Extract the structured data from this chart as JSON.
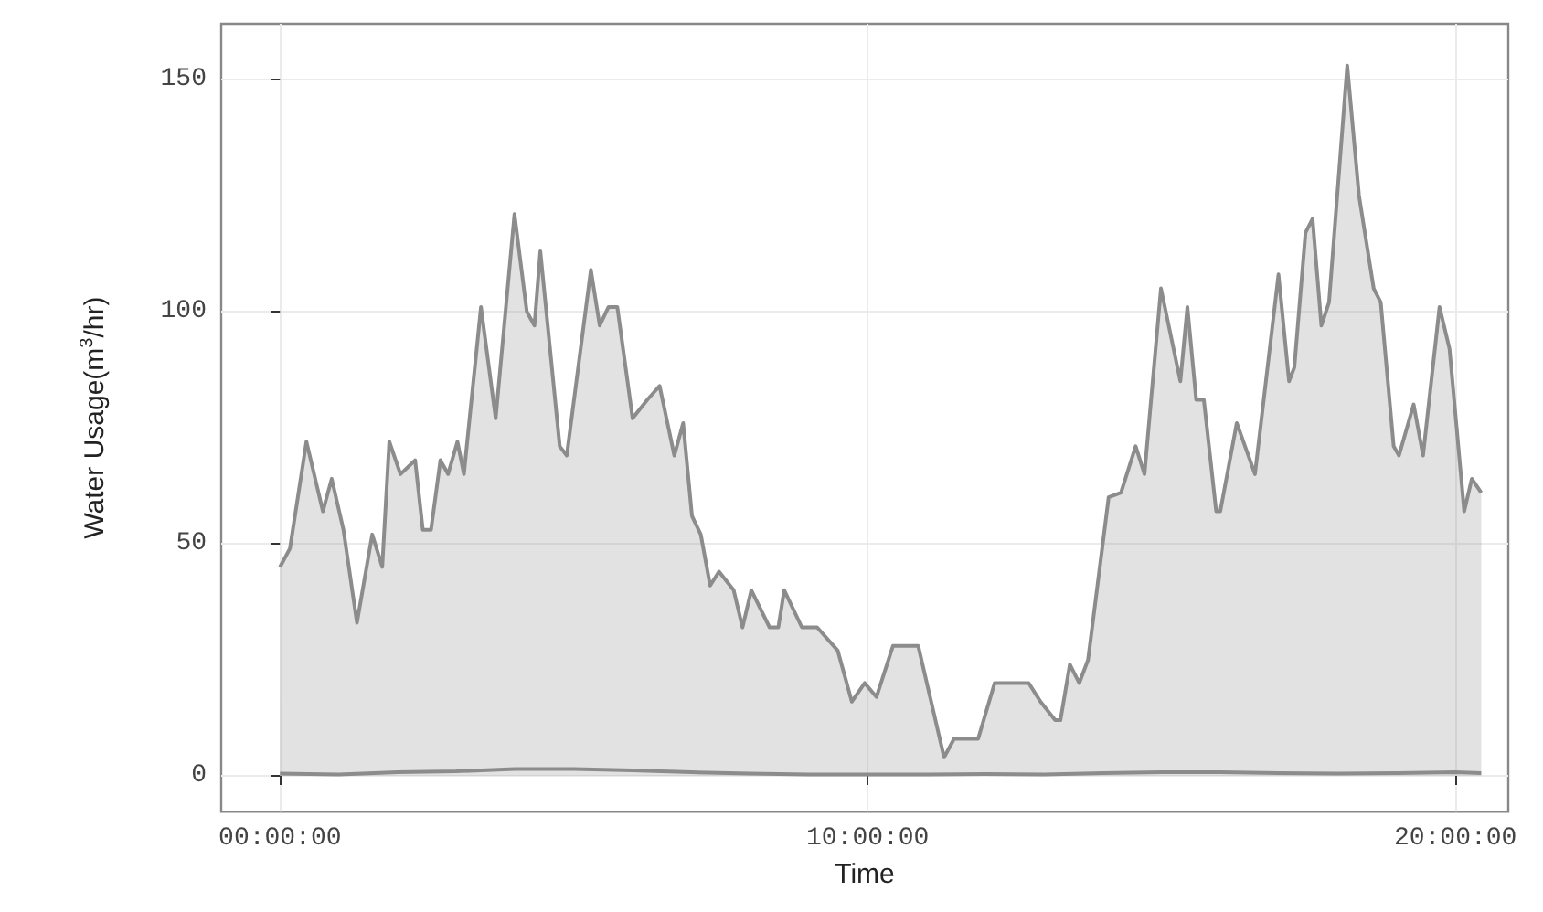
{
  "chart_data": {
    "type": "area",
    "xlabel": "Time",
    "ylabel": "Water Usage(m$^{3}$/hr)",
    "xlim": [
      -1.0,
      20.9
    ],
    "ylim": [
      -7.7,
      162
    ],
    "xticks": [
      {
        "value": 0,
        "label": "00:00:00"
      },
      {
        "value": 10,
        "label": "10:00:00"
      },
      {
        "value": 20,
        "label": "20:00:00"
      }
    ],
    "yticks": [
      0,
      50,
      100,
      150
    ],
    "grid": true,
    "series": [
      {
        "color": "#8c8c8c",
        "x": [
          0,
          0.17,
          0.45,
          0.73,
          0.88,
          1.08,
          1.31,
          1.57,
          1.74,
          1.86,
          2.05,
          2.3,
          2.43,
          2.57,
          2.73,
          2.86,
          3.02,
          3.13,
          3.42,
          3.67,
          3.99,
          4.2,
          4.33,
          4.43,
          4.76,
          4.88,
          5.29,
          5.44,
          5.59,
          5.74,
          6.0,
          6.25,
          6.46,
          6.71,
          6.86,
          7.01,
          7.16,
          7.32,
          7.47,
          7.72,
          7.87,
          8.02,
          8.33,
          8.48,
          8.58,
          8.88,
          9.14,
          9.49,
          9.73,
          9.95,
          10.15,
          10.43,
          10.86,
          11.3,
          11.47,
          11.88,
          12.16,
          12.74,
          12.94,
          13.19,
          13.28,
          13.44,
          13.6,
          13.75,
          14.1,
          14.31,
          14.56,
          14.71,
          14.99,
          15.32,
          15.44,
          15.59,
          15.72,
          15.93,
          16.0,
          16.28,
          16.59,
          16.99,
          17.17,
          17.26,
          17.45,
          17.57,
          17.72,
          17.85,
          18.16,
          18.36,
          18.61,
          18.73,
          18.95,
          19.04,
          19.29,
          19.45,
          19.73,
          19.9,
          20.15,
          20.28,
          20.44
        ],
        "values": [
          45,
          49,
          72,
          57,
          64,
          53,
          33,
          52,
          45,
          72,
          65,
          68,
          53,
          53,
          68,
          65,
          72,
          65,
          101,
          77,
          121,
          100,
          97,
          113,
          71,
          69,
          109,
          97,
          101,
          101,
          77,
          81,
          84,
          69,
          76,
          56,
          52,
          41,
          44,
          40,
          32,
          40,
          32,
          32,
          40,
          32,
          32,
          27,
          16,
          20,
          17,
          28,
          28,
          4,
          8,
          8,
          20,
          20,
          16,
          12,
          12,
          24,
          20,
          25,
          60,
          61,
          71,
          65,
          105,
          85,
          101,
          81,
          81,
          57,
          57,
          76,
          65,
          108,
          85,
          88,
          117,
          120,
          97,
          102,
          153,
          125,
          105,
          102,
          71,
          69,
          80,
          69,
          101,
          92,
          57,
          64,
          61
        ]
      },
      {
        "type": "line",
        "color": "#8c8c8c",
        "x": [
          0,
          1,
          2,
          3,
          4,
          5,
          6,
          7,
          8,
          9,
          10,
          11,
          12,
          13,
          14,
          15,
          16,
          17,
          18,
          19,
          20,
          20.44
        ],
        "values": [
          0.5,
          0.3,
          0.8,
          1.0,
          1.5,
          1.5,
          1.2,
          0.8,
          0.5,
          0.3,
          0.3,
          0.3,
          0.4,
          0.3,
          0.6,
          0.8,
          0.8,
          0.6,
          0.5,
          0.6,
          0.8,
          0.6
        ]
      }
    ]
  }
}
